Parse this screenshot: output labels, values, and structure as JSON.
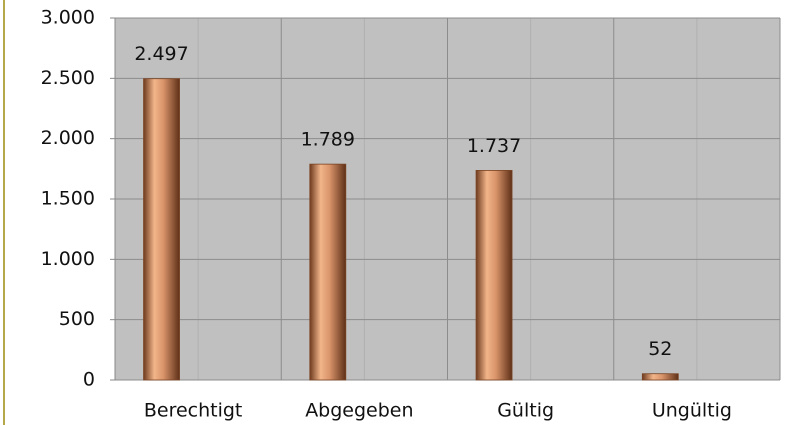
{
  "chart_data": {
    "type": "bar",
    "categories": [
      "Berechtigt",
      "Abgegeben",
      "Gültig",
      "Ungültig"
    ],
    "values": [
      2497,
      1789,
      1737,
      52
    ],
    "value_labels": [
      "2.497",
      "1.789",
      "1.737",
      "52"
    ],
    "color": "#d9946a",
    "ylim": [
      0,
      3000
    ],
    "yticks": [
      0,
      500,
      {
        "value": 1000,
        "label": "1.000"
      },
      {
        "value": 1500,
        "label": "1.500"
      },
      {
        "value": 2000,
        "label": "2.000"
      },
      {
        "value": 2500,
        "label": "2.500"
      },
      {
        "value": 3000,
        "label": "3.000"
      }
    ],
    "grid": true
  }
}
